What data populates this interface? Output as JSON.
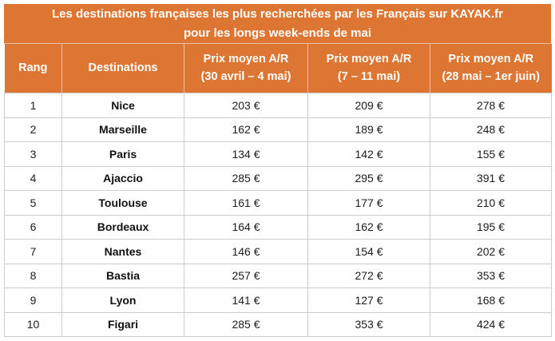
{
  "title": {
    "line1": "Les destinations françaises les plus recherchées par les Français sur KAYAK.fr",
    "line2": "pour les longs week-ends de mai"
  },
  "header": {
    "cols": [
      {
        "label": "Rang",
        "sub": ""
      },
      {
        "label": "Destinations",
        "sub": ""
      },
      {
        "label": "Prix moyen A/R",
        "sub": "(30 avril – 4 mai)"
      },
      {
        "label": "Prix moyen A/R",
        "sub": "(7 – 11 mai)"
      },
      {
        "label": "Prix moyen A/R",
        "sub": "(28 mai – 1er juin)"
      }
    ]
  },
  "colors": {
    "accent_orange": "#DE7633",
    "header_text": "#FFFFFF",
    "body_border": "#CCCCCC",
    "body_text": "#1C1C1C"
  },
  "chart_data": {
    "type": "table",
    "title": "Les destinations françaises les plus recherchées par les Français sur KAYAK.fr pour les longs week-ends de mai",
    "columns": [
      "Rang",
      "Destinations",
      "Prix moyen A/R (30 avril – 4 mai)",
      "Prix moyen A/R (7 – 11 mai)",
      "Prix moyen A/R (28 mai – 1er juin)"
    ],
    "rows": [
      [
        "1",
        "Nice",
        "203 €",
        "209 €",
        "278 €"
      ],
      [
        "2",
        "Marseille",
        "162 €",
        "189 €",
        "248 €"
      ],
      [
        "3",
        "Paris",
        "134 €",
        "142 €",
        "155 €"
      ],
      [
        "4",
        "Ajaccio",
        "285 €",
        "295 €",
        "391 €"
      ],
      [
        "5",
        "Toulouse",
        "161 €",
        "177 €",
        "210 €"
      ],
      [
        "6",
        "Bordeaux",
        "164 €",
        "162 €",
        "195 €"
      ],
      [
        "7",
        "Nantes",
        "146 €",
        "154 €",
        "202 €"
      ],
      [
        "8",
        "Bastia",
        "257 €",
        "272 €",
        "353 €"
      ],
      [
        "9",
        "Lyon",
        "141 €",
        "127 €",
        "168 €"
      ],
      [
        "10",
        "Figari",
        "285 €",
        "353 €",
        "424 €"
      ]
    ]
  }
}
